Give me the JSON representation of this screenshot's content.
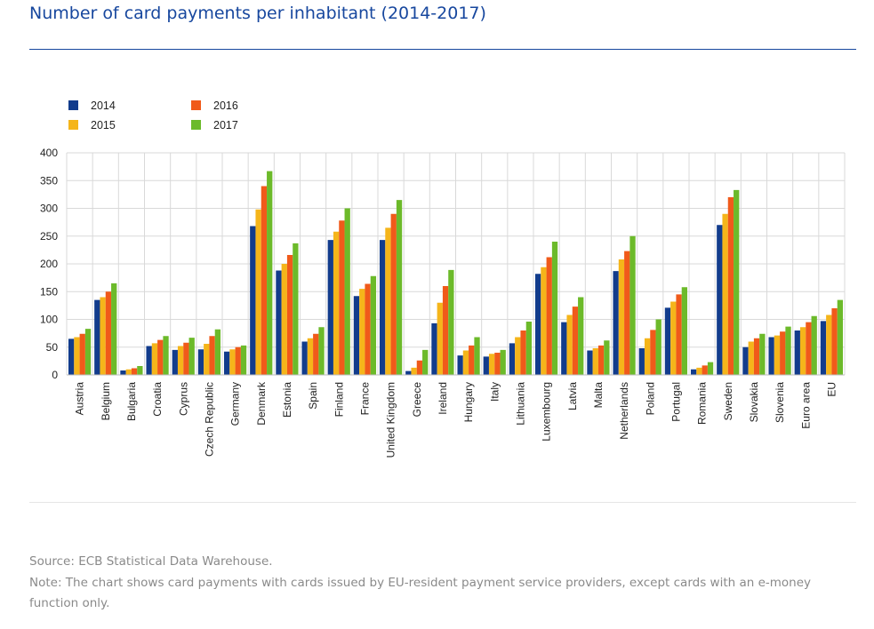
{
  "page": {
    "title": "Number of card payments per inhabitant (2014-2017)",
    "source": "Source: ECB Statistical Data Warehouse.",
    "note": "Note: The chart shows card payments with cards issued by EU-resident payment service providers, except cards with an e-money function only."
  },
  "colors": {
    "title": "#17479e",
    "series": [
      "#123c8c",
      "#f5b51a",
      "#f05a1a",
      "#6cba2a"
    ],
    "grid": "#d9d9d9",
    "footnote": "#8a8a8a"
  },
  "chart_data": {
    "type": "bar",
    "title": "",
    "xlabel": "",
    "ylabel": "",
    "ylim": [
      0,
      400
    ],
    "yticks": [
      0,
      50,
      100,
      150,
      200,
      250,
      300,
      350,
      400
    ],
    "grid": true,
    "legend_position": "top-left",
    "categories": [
      "Austria",
      "Belgium",
      "Bulgaria",
      "Croatia",
      "Cyprus",
      "Czech Republic",
      "Germany",
      "Denmark",
      "Estonia",
      "Spain",
      "Finland",
      "France",
      "United Kingdom",
      "Greece",
      "Ireland",
      "Hungary",
      "Italy",
      "Lithuania",
      "Luxembourg",
      "Latvia",
      "Malta",
      "Netherlands",
      "Poland",
      "Portugal",
      "Romania",
      "Sweden",
      "Slovakia",
      "Slovenia",
      "Euro area",
      "EU"
    ],
    "series": [
      {
        "name": "2014",
        "values": [
          65,
          135,
          8,
          52,
          45,
          46,
          42,
          268,
          188,
          60,
          243,
          142,
          243,
          7,
          93,
          35,
          33,
          57,
          182,
          95,
          44,
          187,
          48,
          121,
          10,
          270,
          50,
          68,
          80,
          97
        ]
      },
      {
        "name": "2015",
        "values": [
          68,
          140,
          10,
          57,
          52,
          56,
          46,
          298,
          200,
          66,
          258,
          155,
          265,
          13,
          130,
          44,
          38,
          68,
          194,
          108,
          48,
          208,
          66,
          132,
          13,
          290,
          60,
          71,
          86,
          108
        ]
      },
      {
        "name": "2016",
        "values": [
          74,
          150,
          12,
          63,
          58,
          70,
          50,
          340,
          216,
          74,
          278,
          164,
          290,
          26,
          160,
          53,
          40,
          80,
          212,
          123,
          53,
          223,
          81,
          145,
          17,
          320,
          66,
          78,
          95,
          120
        ]
      },
      {
        "name": "2017",
        "values": [
          83,
          165,
          16,
          70,
          67,
          82,
          53,
          367,
          237,
          86,
          300,
          178,
          315,
          45,
          189,
          68,
          45,
          96,
          240,
          140,
          62,
          250,
          100,
          158,
          23,
          333,
          74,
          87,
          106,
          135
        ]
      }
    ]
  }
}
